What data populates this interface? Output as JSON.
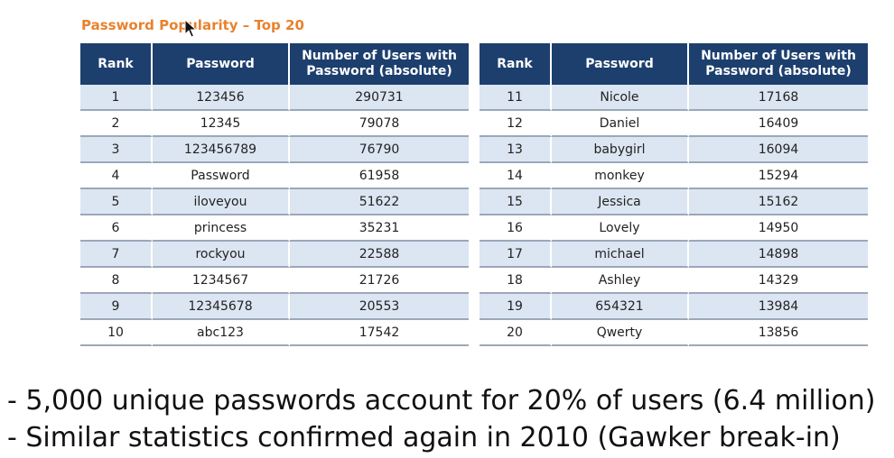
{
  "title": "Password Popularity – Top 20",
  "table": {
    "headers": {
      "rank": "Rank",
      "password": "Password",
      "count_line1": "Number of Users with",
      "count_line2": "Password (absolute)"
    },
    "left_rows": [
      {
        "rank": "1",
        "password": "123456",
        "count": "290731"
      },
      {
        "rank": "2",
        "password": "12345",
        "count": "79078"
      },
      {
        "rank": "3",
        "password": "123456789",
        "count": "76790"
      },
      {
        "rank": "4",
        "password": "Password",
        "count": "61958"
      },
      {
        "rank": "5",
        "password": "iloveyou",
        "count": "51622"
      },
      {
        "rank": "6",
        "password": "princess",
        "count": "35231"
      },
      {
        "rank": "7",
        "password": "rockyou",
        "count": "22588"
      },
      {
        "rank": "8",
        "password": "1234567",
        "count": "21726"
      },
      {
        "rank": "9",
        "password": "12345678",
        "count": "20553"
      },
      {
        "rank": "10",
        "password": "abc123",
        "count": "17542"
      }
    ],
    "right_rows": [
      {
        "rank": "11",
        "password": "Nicole",
        "count": "17168"
      },
      {
        "rank": "12",
        "password": "Daniel",
        "count": "16409"
      },
      {
        "rank": "13",
        "password": "babygirl",
        "count": "16094"
      },
      {
        "rank": "14",
        "password": "monkey",
        "count": "15294"
      },
      {
        "rank": "15",
        "password": "Jessica",
        "count": "15162"
      },
      {
        "rank": "16",
        "password": "Lovely",
        "count": "14950"
      },
      {
        "rank": "17",
        "password": "michael",
        "count": "14898"
      },
      {
        "rank": "18",
        "password": "Ashley",
        "count": "14329"
      },
      {
        "rank": "19",
        "password": "654321",
        "count": "13984"
      },
      {
        "rank": "20",
        "password": "Qwerty",
        "count": "13856"
      }
    ]
  },
  "bullets": [
    "- 5,000 unique passwords account for 20% of users (6.4 million)",
    "- Similar statistics confirmed again in 2010 (Gawker break-in)"
  ],
  "colors": {
    "title": "#e8822e",
    "header_bg": "#1d3f6e",
    "row_alt_bg": "#dce6f2"
  }
}
